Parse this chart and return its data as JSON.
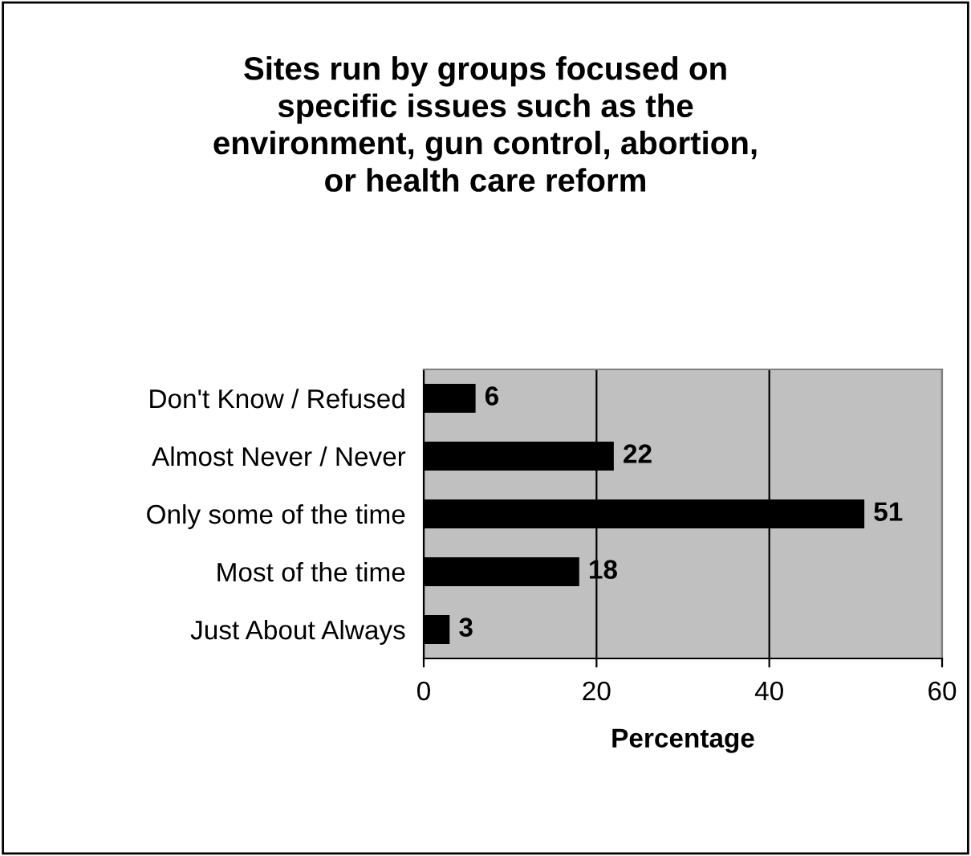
{
  "chart_data": {
    "type": "bar",
    "orientation": "horizontal",
    "title": "Sites run by groups focused on\nspecific issues such as the\nenvironment, gun control, abortion,\nor health care reform",
    "xlabel": "Percentage",
    "categories": [
      "Don't Know / Refused",
      "Almost Never / Never",
      "Only some of the time",
      "Most of the time",
      "Just About Always"
    ],
    "values": [
      6,
      22,
      51,
      18,
      3
    ],
    "color": "#000000",
    "xlim": [
      0,
      60
    ],
    "xticks": [
      0,
      20,
      40,
      60
    ],
    "grid": "x",
    "data_labels": true
  }
}
